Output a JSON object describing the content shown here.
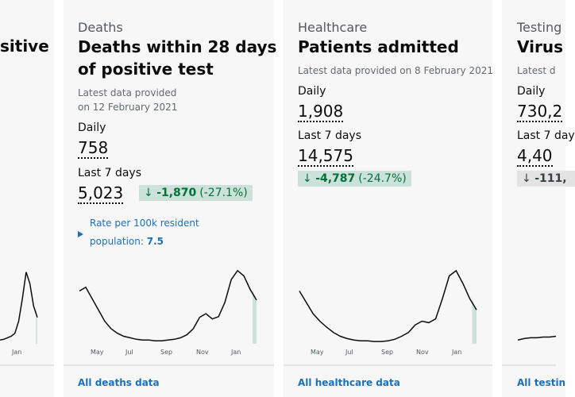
{
  "cards": [
    {
      "title_lines": [
        "sitive"
      ],
      "months": [
        "Jan"
      ],
      "trend": [
        5,
        6,
        8,
        10,
        14,
        30,
        60,
        95,
        80,
        50,
        35
      ]
    },
    {
      "category": "Deaths",
      "title_lines": [
        "Deaths within 28 days",
        "of positive test"
      ],
      "latest": [
        "Latest data provided",
        "on 12 February 2021"
      ],
      "metrics": [
        {
          "label": "Daily",
          "value": "758"
        },
        {
          "label": "Last 7 days",
          "value": "5,023"
        }
      ],
      "change": {
        "arrow": "↓",
        "amount": "-1,870",
        "percent": "(-27.1%)"
      },
      "rate": {
        "line1": "Rate per 100k resident",
        "line2": "population:",
        "value": "7.5"
      },
      "months": [
        "May",
        "Jul",
        "Sep",
        "Nov",
        "Jan"
      ],
      "trend": [
        70,
        75,
        60,
        45,
        30,
        20,
        14,
        10,
        8,
        6,
        5,
        5,
        4,
        4,
        5,
        6,
        8,
        12,
        20,
        35,
        40,
        33,
        36,
        55,
        85,
        97,
        90,
        72,
        58
      ],
      "link": "All deaths data"
    },
    {
      "category": "Healthcare",
      "title_lines": [
        "Patients admitted"
      ],
      "latest": [
        "Latest data provided on 8 February 2021"
      ],
      "metrics": [
        {
          "label": "Daily",
          "value": "1,908"
        },
        {
          "label": "Last 7 days",
          "value": "14,575"
        }
      ],
      "change": {
        "arrow": "↓",
        "amount": "-4,787",
        "percent": "(-24.7%)"
      },
      "months": [
        "May",
        "Jul",
        "Sep",
        "Nov",
        "Jan"
      ],
      "trend": [
        70,
        55,
        40,
        30,
        22,
        15,
        10,
        7,
        5,
        4,
        4,
        3,
        3,
        4,
        6,
        10,
        15,
        25,
        30,
        28,
        33,
        60,
        90,
        97,
        80,
        60,
        45
      ],
      "link": "All healthcare data"
    },
    {
      "category": "Testing",
      "title_lines": [
        "Virus"
      ],
      "latest": [
        "Latest d"
      ],
      "metrics": [
        {
          "label": "Daily",
          "value": "730,2"
        },
        {
          "label": "Last 7 day",
          "value": "4,40"
        }
      ],
      "change": {
        "arrow": "↓",
        "amount": "-111,"
      },
      "trend": [
        5,
        7,
        8,
        8,
        9,
        9,
        10
      ],
      "link": "All testin"
    }
  ]
}
